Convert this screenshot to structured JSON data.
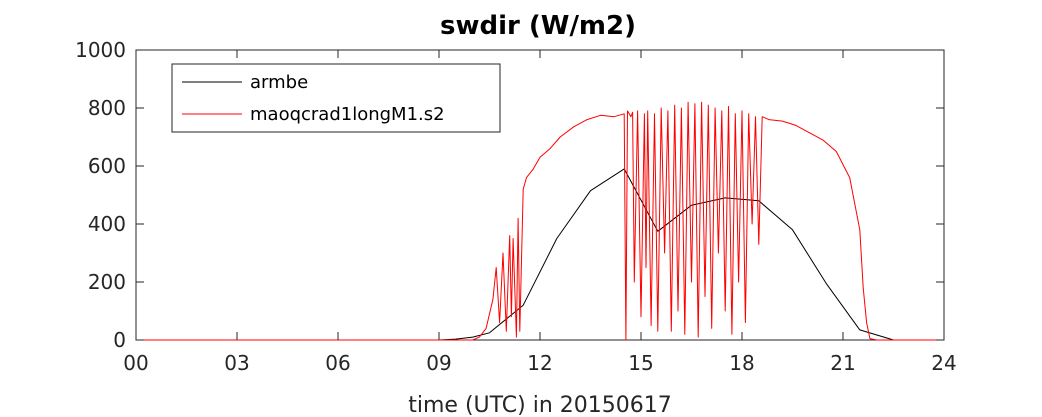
{
  "chart_data": {
    "type": "line",
    "title": "swdir  (W/m2)",
    "xlabel": "time (UTC) in 20150617",
    "ylabel": "",
    "xlim": [
      0,
      24
    ],
    "ylim": [
      0,
      1000
    ],
    "x_ticks": [
      0,
      3,
      6,
      9,
      12,
      15,
      18,
      21,
      24
    ],
    "x_tick_labels": [
      "00",
      "03",
      "06",
      "09",
      "12",
      "15",
      "18",
      "21",
      "24"
    ],
    "y_ticks": [
      0,
      200,
      400,
      600,
      800,
      1000
    ],
    "y_tick_labels": [
      "0",
      "200",
      "400",
      "600",
      "800",
      "1000"
    ],
    "grid": false,
    "legend_position": "top-left",
    "series": [
      {
        "name": "armbe",
        "color": "#000000",
        "x": [
          0,
          1,
          2,
          3,
          4,
          5,
          6,
          7,
          8,
          9,
          9.5,
          10,
          10.5,
          11.5,
          12.5,
          13.5,
          14.5,
          15.5,
          16.5,
          17.5,
          18.5,
          19.5,
          20.5,
          21.5,
          22.5,
          23.5,
          24
        ],
        "y": [
          0,
          0,
          0,
          0,
          0,
          0,
          0,
          0,
          0,
          0,
          3,
          10,
          25,
          120,
          350,
          515,
          590,
          375,
          465,
          490,
          480,
          380,
          195,
          35,
          0,
          0,
          0
        ]
      },
      {
        "name": "maoqcrad1longM1.s2",
        "color": "#ff0000",
        "x": [
          0,
          10.0,
          10.2,
          10.4,
          10.6,
          10.7,
          10.8,
          10.9,
          11.0,
          11.1,
          11.15,
          11.2,
          11.3,
          11.35,
          11.4,
          11.5,
          11.6,
          11.8,
          12.0,
          12.3,
          12.6,
          13.0,
          13.4,
          13.8,
          14.2,
          14.5,
          14.55,
          14.6,
          14.7,
          14.75,
          14.8,
          14.9,
          15.0,
          15.1,
          15.15,
          15.2,
          15.3,
          15.4,
          15.5,
          15.6,
          15.7,
          15.8,
          15.9,
          16.0,
          16.1,
          16.2,
          16.3,
          16.4,
          16.5,
          16.6,
          16.7,
          16.8,
          16.9,
          17.0,
          17.1,
          17.2,
          17.3,
          17.4,
          17.5,
          17.6,
          17.7,
          17.8,
          17.9,
          18.0,
          18.1,
          18.2,
          18.3,
          18.4,
          18.5,
          18.6,
          18.8,
          19.2,
          19.6,
          20.0,
          20.4,
          20.8,
          21.2,
          21.5,
          21.6,
          21.7,
          21.8,
          22.0,
          24
        ],
        "y": [
          0,
          0,
          10,
          40,
          140,
          250,
          60,
          300,
          30,
          360,
          80,
          350,
          10,
          420,
          30,
          520,
          560,
          590,
          630,
          660,
          700,
          735,
          760,
          775,
          770,
          780,
          0,
          790,
          770,
          785,
          200,
          790,
          80,
          780,
          250,
          790,
          50,
          780,
          30,
          800,
          300,
          790,
          30,
          810,
          100,
          800,
          20,
          820,
          200,
          815,
          10,
          820,
          150,
          810,
          40,
          800,
          300,
          790,
          100,
          805,
          20,
          780,
          200,
          790,
          60,
          780,
          400,
          770,
          330,
          770,
          760,
          755,
          740,
          715,
          690,
          650,
          560,
          380,
          180,
          60,
          5,
          0,
          0
        ]
      }
    ]
  }
}
